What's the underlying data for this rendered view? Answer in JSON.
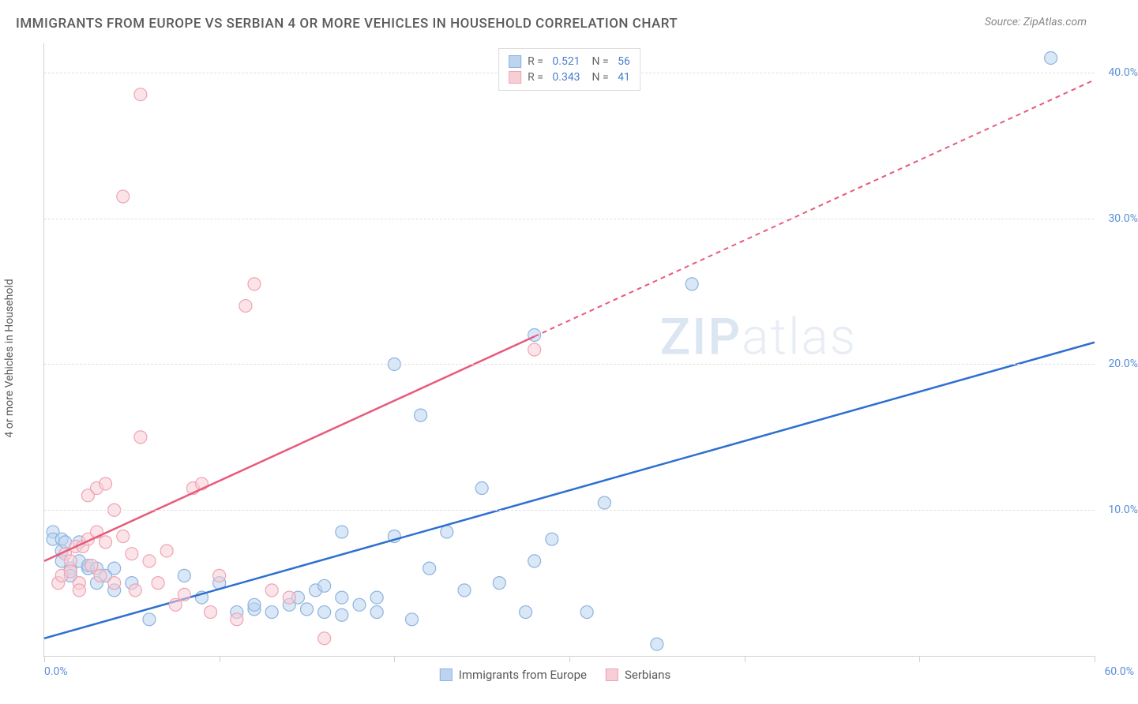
{
  "header": {
    "title": "IMMIGRANTS FROM EUROPE VS SERBIAN 4 OR MORE VEHICLES IN HOUSEHOLD CORRELATION CHART",
    "source": "Source: ZipAtlas.com"
  },
  "chart": {
    "type": "scatter",
    "ylabel": "4 or more Vehicles in Household",
    "xlim": [
      0,
      60
    ],
    "ylim": [
      0,
      42
    ],
    "xtick_positions": [
      0,
      10,
      20,
      30,
      40,
      50,
      60
    ],
    "xaxis_labels": [
      {
        "pos": 0,
        "text": "0.0%"
      },
      {
        "pos": 60,
        "text": "60.0%"
      }
    ],
    "yticks": [
      {
        "pos": 10,
        "label": "10.0%"
      },
      {
        "pos": 20,
        "label": "20.0%"
      },
      {
        "pos": 30,
        "label": "30.0%"
      },
      {
        "pos": 40,
        "label": "40.0%"
      }
    ],
    "grid_color": "#e0e0e0",
    "background_color": "#ffffff",
    "series": [
      {
        "name": "Immigrants from Europe",
        "color_fill": "#bcd4ef",
        "color_stroke": "#8cb4e0",
        "line_color": "#2e6fd0",
        "marker_radius": 8,
        "marker_opacity": 0.55,
        "R": "0.521",
        "N": "56",
        "trend": {
          "x1": 0,
          "y1": 1.2,
          "x2": 60,
          "y2": 21.5,
          "dash_after_x": null
        },
        "points": [
          [
            0.5,
            8.5
          ],
          [
            0.5,
            8
          ],
          [
            1,
            8
          ],
          [
            1,
            7.2
          ],
          [
            1.2,
            7.8
          ],
          [
            1,
            6.5
          ],
          [
            1.5,
            6
          ],
          [
            1.5,
            5.5
          ],
          [
            2,
            7.8
          ],
          [
            2,
            6.5
          ],
          [
            2.5,
            6
          ],
          [
            2.5,
            6.2
          ],
          [
            3,
            6
          ],
          [
            3,
            5
          ],
          [
            3.5,
            5.5
          ],
          [
            4,
            6
          ],
          [
            4,
            4.5
          ],
          [
            5,
            5
          ],
          [
            6,
            2.5
          ],
          [
            8,
            5.5
          ],
          [
            9,
            4
          ],
          [
            10,
            5
          ],
          [
            11,
            3
          ],
          [
            12,
            3.2
          ],
          [
            12,
            3.5
          ],
          [
            13,
            3
          ],
          [
            14,
            3.5
          ],
          [
            14.5,
            4
          ],
          [
            15,
            3.2
          ],
          [
            15.5,
            4.5
          ],
          [
            16,
            3
          ],
          [
            16,
            4.8
          ],
          [
            17,
            4
          ],
          [
            17,
            2.8
          ],
          [
            17,
            8.5
          ],
          [
            18,
            3.5
          ],
          [
            19,
            4
          ],
          [
            19,
            3
          ],
          [
            20,
            8.2
          ],
          [
            20,
            20
          ],
          [
            21,
            2.5
          ],
          [
            21.5,
            16.5
          ],
          [
            22,
            6
          ],
          [
            23,
            8.5
          ],
          [
            24,
            4.5
          ],
          [
            25,
            11.5
          ],
          [
            26,
            5
          ],
          [
            27.5,
            3
          ],
          [
            28,
            6.5
          ],
          [
            28,
            22
          ],
          [
            29,
            8
          ],
          [
            31,
            3
          ],
          [
            32,
            10.5
          ],
          [
            35,
            0.8
          ],
          [
            37,
            25.5
          ],
          [
            57.5,
            41
          ]
        ]
      },
      {
        "name": "Serbians",
        "color_fill": "#f7cdd6",
        "color_stroke": "#efa3b5",
        "line_color": "#e85a7a",
        "marker_radius": 8,
        "marker_opacity": 0.55,
        "R": "0.343",
        "N": "41",
        "trend": {
          "x1": 0,
          "y1": 6.5,
          "x2": 60,
          "y2": 39.5,
          "dash_after_x": 28
        },
        "points": [
          [
            0.8,
            5
          ],
          [
            1,
            5.5
          ],
          [
            1.2,
            7
          ],
          [
            1.5,
            6.5
          ],
          [
            1.5,
            5.8
          ],
          [
            1.8,
            7.5
          ],
          [
            2,
            5
          ],
          [
            2,
            4.5
          ],
          [
            2.2,
            7.5
          ],
          [
            2.5,
            8
          ],
          [
            2.5,
            11
          ],
          [
            2.7,
            6.2
          ],
          [
            3,
            11.5
          ],
          [
            3,
            8.5
          ],
          [
            3.2,
            5.5
          ],
          [
            3.5,
            7.8
          ],
          [
            3.5,
            11.8
          ],
          [
            4,
            10
          ],
          [
            4,
            5
          ],
          [
            4.5,
            8.2
          ],
          [
            4.5,
            31.5
          ],
          [
            5,
            7
          ],
          [
            5.2,
            4.5
          ],
          [
            5.5,
            15
          ],
          [
            5.5,
            38.5
          ],
          [
            6,
            6.5
          ],
          [
            6.5,
            5
          ],
          [
            7,
            7.2
          ],
          [
            7.5,
            3.5
          ],
          [
            8,
            4.2
          ],
          [
            8.5,
            11.5
          ],
          [
            9,
            11.8
          ],
          [
            9.5,
            3
          ],
          [
            10,
            5.5
          ],
          [
            11,
            2.5
          ],
          [
            11.5,
            24
          ],
          [
            12,
            25.5
          ],
          [
            13,
            4.5
          ],
          [
            14,
            4
          ],
          [
            16,
            1.2
          ],
          [
            28,
            21
          ]
        ]
      }
    ],
    "legend_bottom": [
      {
        "label": "Immigrants from Europe",
        "fill": "#bcd4ef",
        "stroke": "#8cb4e0"
      },
      {
        "label": "Serbians",
        "fill": "#f7cdd6",
        "stroke": "#efa3b5"
      }
    ],
    "watermark": {
      "bold": "ZIP",
      "light": "atlas"
    }
  }
}
